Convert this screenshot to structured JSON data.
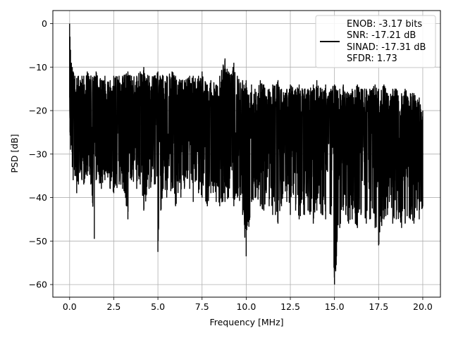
{
  "chart_data": {
    "type": "line",
    "title": "",
    "xlabel": "Frequency [MHz]",
    "ylabel": "PSD [dB]",
    "xlim": [
      -0.95,
      21.0
    ],
    "ylim": [
      -62.9,
      3.0
    ],
    "xticks": [
      0.0,
      2.5,
      5.0,
      7.5,
      10.0,
      12.5,
      15.0,
      17.5,
      20.0
    ],
    "xtick_labels": [
      "0.0",
      "2.5",
      "5.0",
      "7.5",
      "10.0",
      "12.5",
      "15.0",
      "17.5",
      "20.0"
    ],
    "yticks": [
      0,
      -10,
      -20,
      -30,
      -40,
      -50,
      -60
    ],
    "ytick_labels": [
      "0",
      "−10",
      "−20",
      "−30",
      "−40",
      "−50",
      "−60"
    ],
    "grid": true,
    "legend_position": "top-right",
    "legend_lines": [
      "ENOB: -3.17 bits",
      "SNR: -17.21 dB",
      "SINAD: -17.31 dB",
      "SFDR: 1.73"
    ],
    "line_color": "#000000",
    "series": [
      {
        "x": [
          0.0,
          0.02,
          0.05,
          0.1,
          0.15,
          0.2,
          0.3,
          0.4,
          0.5,
          0.6,
          0.7,
          0.8,
          1.0,
          1.2,
          1.4,
          1.5,
          1.8,
          2.0,
          2.3,
          2.5,
          2.8,
          3.0,
          3.3,
          3.5,
          3.8,
          4.0,
          4.2,
          4.5,
          4.8,
          5.0,
          5.3,
          5.5,
          5.8,
          6.0,
          6.3,
          6.5,
          6.8,
          7.0,
          7.3,
          7.5,
          7.8,
          8.0,
          8.3,
          8.5,
          8.8,
          9.0,
          9.3,
          9.5,
          9.8,
          10.0,
          10.3,
          10.5,
          10.8,
          11.0,
          11.3,
          11.5,
          11.8,
          12.0,
          12.3,
          12.5,
          12.8,
          13.0,
          13.3,
          13.5,
          13.8,
          14.0,
          14.3,
          14.5,
          14.8,
          15.0,
          15.3,
          15.5,
          15.8,
          16.0,
          16.3,
          16.5,
          16.8,
          17.0,
          17.3,
          17.5,
          17.8,
          18.0,
          18.3,
          18.5,
          18.8,
          19.0,
          19.3,
          19.5,
          19.8,
          20.0
        ],
        "upper": [
          0,
          -3,
          -6,
          -9,
          -10,
          -11,
          -12,
          -12.5,
          -12,
          -13,
          -12,
          -12,
          -11,
          -12,
          -12,
          -11,
          -13,
          -12,
          -13,
          -12,
          -12,
          -12,
          -11,
          -12,
          -12,
          -11,
          -10,
          -12,
          -12,
          -11,
          -12,
          -12,
          -11,
          -12,
          -13,
          -13,
          -12,
          -12,
          -12,
          -11,
          -14,
          -13,
          -14,
          -12,
          -8,
          -11,
          -9,
          -12,
          -13,
          -13,
          -14,
          -15,
          -13,
          -14,
          -15,
          -14,
          -13,
          -15,
          -15,
          -14,
          -15,
          -14,
          -15,
          -15,
          -14,
          -13,
          -15,
          -14,
          -15,
          -14,
          -15,
          -14,
          -16,
          -15,
          -14,
          -15,
          -15,
          -15,
          -14,
          -15,
          -14,
          -16,
          -15,
          -15,
          -16,
          -15,
          -16,
          -16,
          -17,
          -20
        ],
        "lower": [
          -17,
          -25,
          -29,
          -28,
          -33,
          -36,
          -35,
          -39,
          -37,
          -34,
          -36,
          -37,
          -35,
          -37,
          -49.5,
          -36,
          -38,
          -36,
          -38,
          -39,
          -37,
          -38,
          -45,
          -36,
          -38,
          -37,
          -43,
          -38,
          -37,
          -52.5,
          -38,
          -40,
          -38,
          -42,
          -40,
          -38,
          -38,
          -41,
          -39,
          -40,
          -42,
          -39,
          -41,
          -42,
          -41,
          -40,
          -42,
          -40,
          -44,
          -53.5,
          -41,
          -40,
          -42,
          -43,
          -42,
          -44,
          -46,
          -42,
          -41,
          -44,
          -43,
          -45,
          -44,
          -43,
          -46,
          -43,
          -44,
          -45,
          -44,
          -60,
          -47,
          -43,
          -46,
          -45,
          -47,
          -44,
          -46,
          -45,
          -47,
          -51,
          -45,
          -44,
          -46,
          -45,
          -47,
          -46,
          -45,
          -46,
          -45,
          -42
        ]
      }
    ]
  }
}
